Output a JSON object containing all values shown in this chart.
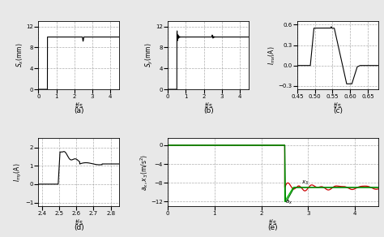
{
  "fig_bg": "#e8e8e8",
  "subplot_bg": "#ffffff",
  "a_title": "(a)",
  "b_title": "(b)",
  "c_title": "(c)",
  "d_title": "(d)",
  "e_title": "(e)",
  "a_ylabel": "$S_x$(mm)",
  "b_ylabel": "$S_y$(mm)",
  "c_ylabel": "$I_{mx}$(A)",
  "d_ylabel": "$I_{my}$(A)",
  "e_ylabel": "$a_x,x_3$(m/s$^2$)",
  "xlabel": "$t$/s",
  "a_ylim": [
    0,
    13
  ],
  "a_yticks": [
    0,
    4,
    8,
    12
  ],
  "a_xlim": [
    0,
    4.5
  ],
  "a_xticks": [
    0,
    1,
    2,
    3,
    4
  ],
  "b_ylim": [
    0,
    13
  ],
  "b_yticks": [
    0,
    4,
    8,
    12
  ],
  "b_xlim": [
    0,
    4.5
  ],
  "b_xticks": [
    0,
    1,
    2,
    3,
    4
  ],
  "c_ylim": [
    -0.35,
    0.65
  ],
  "c_yticks": [
    -0.3,
    0,
    0.3,
    0.6
  ],
  "c_xlim": [
    0.45,
    0.68
  ],
  "c_xticks": [
    0.45,
    0.5,
    0.55,
    0.6,
    0.65
  ],
  "d_ylim": [
    -1.2,
    2.5
  ],
  "d_yticks": [
    -1,
    0,
    1,
    2
  ],
  "d_xlim": [
    2.38,
    2.85
  ],
  "d_xticks": [
    2.4,
    2.5,
    2.6,
    2.7,
    2.8
  ],
  "e_ylim": [
    -13,
    1.5
  ],
  "e_yticks": [
    -12,
    -8,
    -4,
    0
  ],
  "e_xlim": [
    0,
    4.5
  ],
  "e_xticks": [
    0,
    1,
    2,
    3,
    4
  ],
  "line_color": "#000000",
  "red_color": "#cc0000",
  "green_color": "#00bb00",
  "darkgreen_color": "#007700"
}
